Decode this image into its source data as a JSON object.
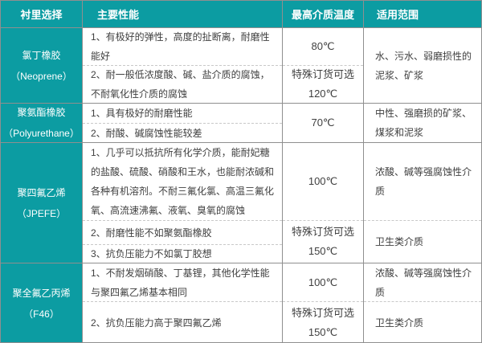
{
  "table": {
    "headers": [
      "衬里选择",
      "主要性能",
      "最高介质温度",
      "适用范围"
    ],
    "rows": [
      {
        "material": {
          "cn": "氯丁橡胶",
          "en": "（Neoprene）"
        },
        "performance": [
          "1、有极好的弹性，高度的扯断离，耐磨性能好",
          "2、耐一般低浓度酸、碱、盐介质的腐蚀，不耐氧化性介质的腐蚀"
        ],
        "temps": [
          {
            "lines": [
              "80℃"
            ]
          },
          {
            "lines": [
              "特殊订货可选",
              "120℃"
            ]
          }
        ],
        "ranges": [
          "水、污水、弱磨损性的泥浆、矿浆"
        ]
      },
      {
        "material": {
          "cn": "聚氨酯橡胶",
          "en": "（Polyurethane）"
        },
        "performance": [
          "1、具有极好的耐磨性能",
          "2、耐酸、碱腐蚀性能较差"
        ],
        "temps": [
          {
            "lines": [
              "70℃"
            ]
          }
        ],
        "ranges": [
          "中性、强磨损的矿浆、煤浆和泥浆"
        ]
      },
      {
        "material": {
          "cn": "聚四氟乙烯",
          "en": "（JPEFE）"
        },
        "performance": [
          "1、几乎可以抵抗所有化学介质，能耐妃糖的盐酸、硫酸、硝酸和王水，也能耐浓碱和各种有机溶剂。不耐三氟化氯、高温三氟化氧、高流速沸氟、液氧、臭氧的腐蚀",
          "2、耐磨性能不如聚氨酯橡胶",
          "3、抗负压能力不如氯丁胶想"
        ],
        "temps": [
          {
            "lines": [
              "100℃"
            ]
          },
          {
            "lines": [
              "特殊订货可选",
              "150℃"
            ]
          }
        ],
        "ranges": [
          "浓酸、碱等强腐蚀性介质",
          "卫生类介质"
        ]
      },
      {
        "material": {
          "cn": "聚全氟乙丙烯",
          "en": "（F46）"
        },
        "performance": [
          "1、不耐发烟硝酸、丁基锂，其他化学性能与聚四氟乙烯基本相同",
          "2、抗负压能力高于聚四氟乙烯"
        ],
        "temps": [
          {
            "lines": [
              "100℃"
            ]
          },
          {
            "lines": [
              "特殊订货可选",
              "150℃"
            ]
          }
        ],
        "ranges": [
          "浓酸、碱等强腐蚀性介质",
          "卫生类介质"
        ]
      }
    ],
    "colors": {
      "accent_teal": "#0c9ca2",
      "border_solid": "#8f8f8f",
      "border_dashed": "#c9c9c9",
      "body_text": "#3f3f3f",
      "header_text": "#ffffff"
    }
  }
}
